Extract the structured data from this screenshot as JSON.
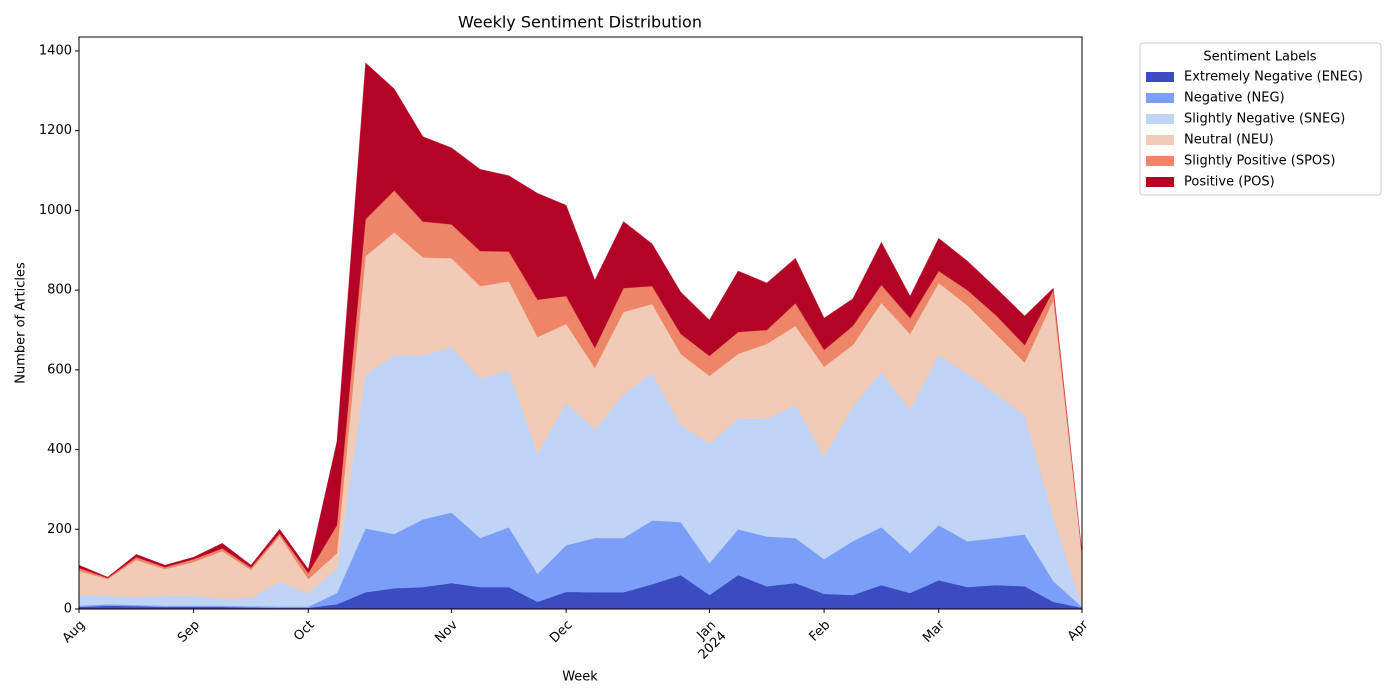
{
  "chart_data": {
    "type": "area",
    "title": "Weekly Sentiment Distribution",
    "xlabel": "Week",
    "ylabel": "Number of Articles",
    "legend_title": "Sentiment Labels",
    "categories": [
      "Aug",
      null,
      null,
      null,
      "Sep",
      null,
      null,
      null,
      "Oct",
      null,
      null,
      null,
      null,
      "Nov",
      null,
      null,
      null,
      "Dec",
      null,
      null,
      null,
      null,
      "Jan\n2024",
      null,
      null,
      null,
      "Feb",
      null,
      null,
      null,
      "Mar",
      null,
      null,
      null,
      null,
      "Apr"
    ],
    "ylim": [
      0,
      1435
    ],
    "yticks": [
      0,
      200,
      400,
      600,
      800,
      1000,
      1200,
      1400
    ],
    "series": [
      {
        "name": "Extremely Negative (ENEG)",
        "color": "#3b4cc0",
        "values": [
          5,
          8,
          7,
          5,
          5,
          5,
          4,
          3,
          3,
          12,
          42,
          52,
          55,
          65,
          55,
          55,
          18,
          43,
          42,
          42,
          62,
          85,
          35,
          85,
          57,
          65,
          38,
          35,
          60,
          40,
          72,
          55,
          60,
          57,
          18,
          3
        ]
      },
      {
        "name": "Negative (NEG)",
        "color": "#7b9ff9",
        "values": [
          3,
          4,
          3,
          3,
          3,
          3,
          3,
          3,
          3,
          28,
          160,
          136,
          170,
          177,
          123,
          150,
          70,
          117,
          136,
          136,
          160,
          133,
          80,
          115,
          125,
          113,
          87,
          135,
          145,
          100,
          138,
          115,
          118,
          130,
          52,
          2
        ]
      },
      {
        "name": "Slightly Negative (SNEG)",
        "color": "#c0d4f5",
        "values": [
          27,
          21,
          20,
          25,
          25,
          17,
          21,
          62,
          34,
          60,
          386,
          448,
          411,
          415,
          400,
          393,
          302,
          357,
          272,
          360,
          370,
          244,
          300,
          277,
          295,
          334,
          257,
          338,
          390,
          360,
          427,
          420,
          362,
          298,
          160,
          3
        ]
      },
      {
        "name": "Neutral (NEU)",
        "color": "#f2cbb7",
        "values": [
          60,
          42,
          93,
          67,
          85,
          120,
          70,
          115,
          35,
          40,
          297,
          309,
          246,
          223,
          232,
          224,
          292,
          198,
          155,
          207,
          173,
          178,
          170,
          163,
          188,
          198,
          226,
          154,
          173,
          190,
          181,
          172,
          150,
          133,
          545,
          127
        ]
      },
      {
        "name": "Slightly Positive (SPOS)",
        "color": "#ee8468",
        "values": [
          8,
          3,
          7,
          5,
          7,
          7,
          6,
          7,
          15,
          70,
          93,
          105,
          90,
          85,
          88,
          75,
          94,
          70,
          50,
          60,
          45,
          50,
          50,
          55,
          35,
          57,
          42,
          48,
          45,
          40,
          30,
          38,
          47,
          44,
          25,
          3
        ]
      },
      {
        "name": "Positive (POS)",
        "color": "#b40426",
        "values": [
          7,
          2,
          7,
          5,
          5,
          13,
          6,
          10,
          10,
          210,
          392,
          255,
          213,
          192,
          205,
          190,
          267,
          228,
          170,
          167,
          106,
          105,
          90,
          153,
          118,
          113,
          80,
          68,
          107,
          55,
          82,
          73,
          68,
          73,
          5,
          2
        ]
      }
    ]
  }
}
